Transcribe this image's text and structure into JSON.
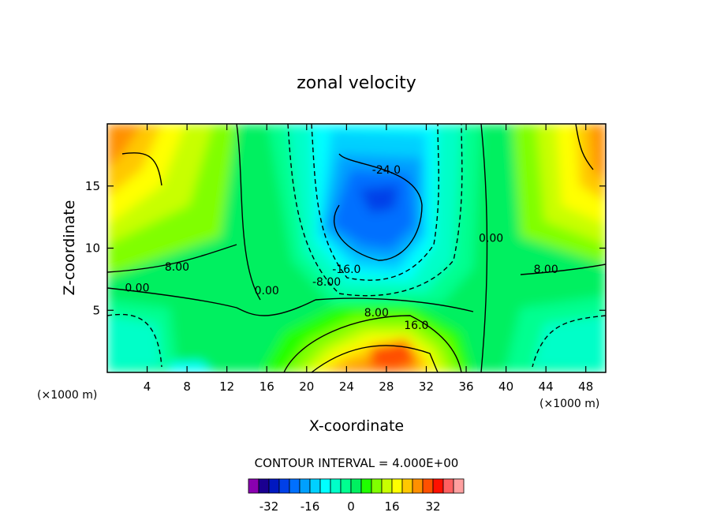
{
  "chart_data": {
    "type": "contour",
    "title": "zonal velocity",
    "xlabel": "X-coordinate",
    "ylabel": "Z-coordinate",
    "x_unit": "(×1000 m)",
    "xlim": [
      0,
      50
    ],
    "ylim": [
      0,
      20
    ],
    "x_ticks": [
      4,
      8,
      12,
      16,
      20,
      24,
      28,
      32,
      36,
      40,
      44,
      48
    ],
    "y_ticks": [
      5,
      10,
      15
    ],
    "contour_interval_text": "CONTOUR INTERVAL = 4.000E+00",
    "contour_labels": [
      {
        "text": "-24.0",
        "x": 28,
        "z": 16
      },
      {
        "text": "-16.0",
        "x": 24,
        "z": 8
      },
      {
        "text": "-8.00",
        "x": 22,
        "z": 7
      },
      {
        "text": "0.00",
        "x": 38.5,
        "z": 10.5
      },
      {
        "text": "8.00",
        "x": 7,
        "z": 8.2
      },
      {
        "text": "0.00",
        "x": 3,
        "z": 6.5
      },
      {
        "text": "0.00",
        "x": 16,
        "z": 6.3
      },
      {
        "text": "8.00",
        "x": 44,
        "z": 8
      },
      {
        "text": "8.00",
        "x": 27,
        "z": 4.5
      },
      {
        "text": "16.0",
        "x": 31,
        "z": 3.5
      }
    ],
    "features": [
      {
        "kind": "min",
        "x": 27,
        "z": 13.5,
        "value": -30
      },
      {
        "kind": "max",
        "x": 28,
        "z": 1.5,
        "value": 28
      },
      {
        "kind": "max",
        "x": 1,
        "z": 17,
        "value": 24
      },
      {
        "kind": "max",
        "x": 48,
        "z": 17,
        "value": 24
      },
      {
        "kind": "min",
        "x": 2,
        "z": 2.5,
        "value": -8
      },
      {
        "kind": "min",
        "x": 47,
        "z": 1.5,
        "value": -8
      }
    ],
    "colorbar": {
      "tick_labels": [
        "-32",
        "-16",
        "0",
        "16",
        "32"
      ],
      "tick_values": [
        -32,
        -16,
        0,
        16,
        32
      ],
      "levels": [
        -40,
        -36,
        -32,
        -28,
        -24,
        -20,
        -16,
        -12,
        -8,
        -4,
        0,
        4,
        8,
        12,
        16,
        20,
        24,
        28,
        32,
        36,
        40
      ],
      "colors": [
        "#8a00b0",
        "#1a0090",
        "#0018c0",
        "#0040e8",
        "#0070ff",
        "#00a0ff",
        "#00d0ff",
        "#00ffff",
        "#00ffc8",
        "#00ff90",
        "#00f060",
        "#20ff00",
        "#80ff00",
        "#c8ff00",
        "#ffff00",
        "#ffc800",
        "#ff9000",
        "#ff5000",
        "#ff1000",
        "#ff6060",
        "#ffa0a0"
      ]
    },
    "grid": false,
    "legend": "colorbar-bottom"
  }
}
